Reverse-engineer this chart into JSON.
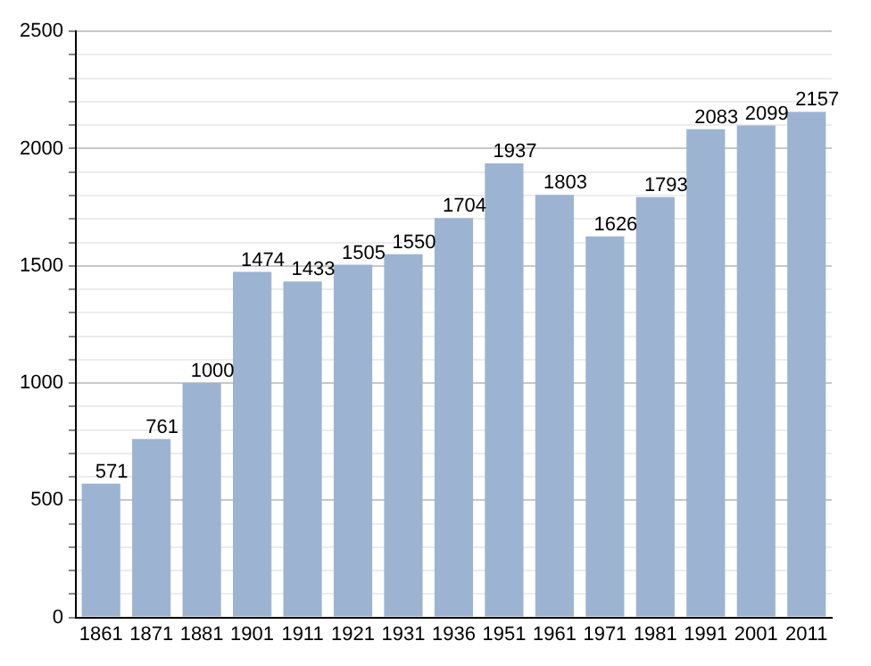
{
  "chart_data": {
    "type": "bar",
    "categories": [
      "1861",
      "1871",
      "1881",
      "1901",
      "1911",
      "1921",
      "1931",
      "1936",
      "1951",
      "1961",
      "1971",
      "1981",
      "1991",
      "2001",
      "2011"
    ],
    "values": [
      571,
      761,
      1000,
      1474,
      1433,
      1505,
      1550,
      1704,
      1937,
      1803,
      1626,
      1793,
      2083,
      2099,
      2157
    ],
    "color": "#9cb4d2",
    "ylim": [
      0,
      2500
    ],
    "yticks": [
      0,
      {
        "value": 100,
        "label": null
      },
      {
        "value": 200,
        "label": null
      },
      {
        "value": 300,
        "label": null
      },
      {
        "value": 400,
        "label": null
      },
      500,
      {
        "value": 600,
        "label": null
      },
      {
        "value": 700,
        "label": null
      },
      {
        "value": 800,
        "label": null
      },
      {
        "value": 900,
        "label": null
      },
      1000,
      {
        "value": 1100,
        "label": null
      },
      {
        "value": 1200,
        "label": null
      },
      {
        "value": 1300,
        "label": null
      },
      {
        "value": 1400,
        "label": null
      },
      1500,
      {
        "value": 1600,
        "label": null
      },
      {
        "value": 1700,
        "label": null
      },
      {
        "value": 1800,
        "label": null
      },
      {
        "value": 1900,
        "label": null
      },
      2000,
      {
        "value": 2100,
        "label": null
      },
      {
        "value": 2200,
        "label": null
      },
      {
        "value": 2300,
        "label": null
      },
      {
        "value": 2400,
        "label": null
      },
      2500
    ],
    "grid": "y",
    "data_labels": true
  }
}
